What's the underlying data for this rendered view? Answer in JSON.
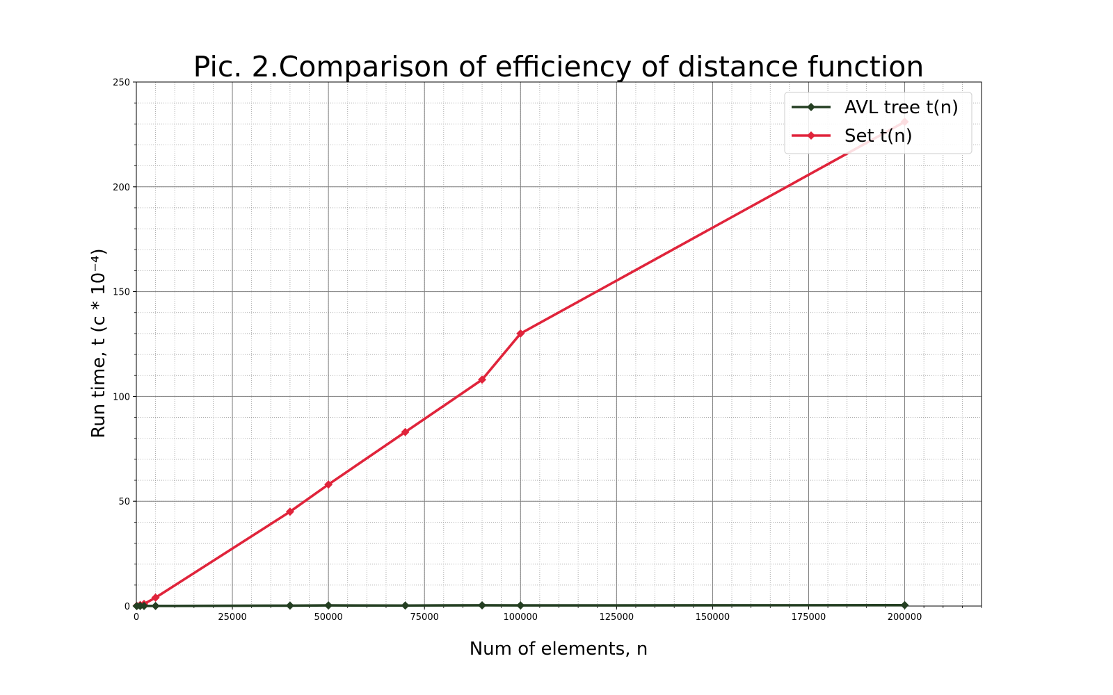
{
  "chart_data": {
    "type": "line",
    "title": "Pic. 2.Comparison of efficiency of distance function",
    "xlabel": "Num of elements, n",
    "ylabel": "Run time, t (c * 10⁻⁴)",
    "xlim": [
      0,
      220000
    ],
    "ylim": [
      0,
      250
    ],
    "x_ticks": [
      0,
      25000,
      50000,
      75000,
      100000,
      125000,
      150000,
      175000,
      200000
    ],
    "y_ticks": [
      0,
      50,
      100,
      150,
      200,
      250
    ],
    "grid": "major-and-minor",
    "legend_position": "top-right",
    "series": [
      {
        "name": "AVL tree t(n)",
        "color": "#243f22",
        "marker": "diamond",
        "x": [
          100,
          1000,
          2000,
          5000,
          40000,
          50000,
          70000,
          90000,
          100000,
          200000
        ],
        "y": [
          0.02,
          0.03,
          0.04,
          0.05,
          0.2,
          0.3,
          0.25,
          0.35,
          0.3,
          0.4
        ]
      },
      {
        "name": "Set t(n)",
        "color": "#e0243b",
        "marker": "diamond",
        "x": [
          100,
          1000,
          2000,
          5000,
          40000,
          50000,
          70000,
          90000,
          100000,
          200000
        ],
        "y": [
          0.1,
          0.5,
          1,
          4,
          45,
          58,
          83,
          108,
          130,
          231
        ]
      }
    ]
  }
}
